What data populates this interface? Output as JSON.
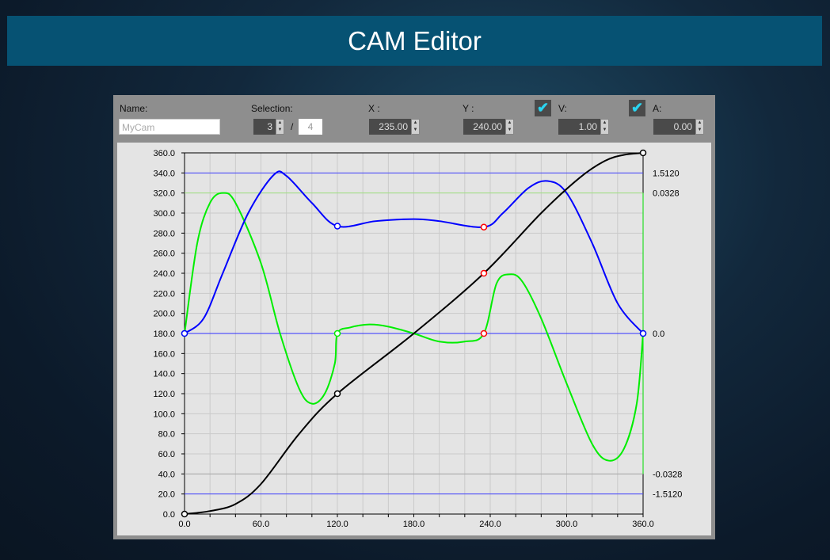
{
  "title": "CAM Editor",
  "toolbar": {
    "name_label": "Name:",
    "name_value": "MyCam",
    "selection_label": "Selection:",
    "selection_value": "3",
    "selection_sep": "/",
    "selection_total": "4",
    "x_label": "X :",
    "x_value": "235.00",
    "y_label": "Y :",
    "y_value": "240.00",
    "v_label": "V:",
    "v_value": "1.00",
    "v_checked": true,
    "a_label": "A:",
    "a_value": "0.00",
    "a_checked": true
  },
  "chart_data": {
    "type": "line",
    "xlim": [
      0,
      360
    ],
    "ylim": [
      0,
      360
    ],
    "x_ticks": [
      "0.0",
      "60.0",
      "120.0",
      "180.0",
      "240.0",
      "300.0",
      "360.0"
    ],
    "y_ticks": [
      "0.0",
      "20.0",
      "40.0",
      "60.0",
      "80.0",
      "100.0",
      "120.0",
      "140.0",
      "160.0",
      "180.0",
      "200.0",
      "220.0",
      "240.0",
      "260.0",
      "280.0",
      "300.0",
      "320.0",
      "340.0",
      "360.0"
    ],
    "right_ticks": [
      "1.5120",
      "0.0328",
      "0.0",
      "-0.0328",
      "-1.5120"
    ],
    "grid": true,
    "colors": {
      "position": "#000000",
      "velocity": "#0000ff",
      "acceleration": "#00ee00",
      "selected": "#ff0000"
    },
    "control_points": [
      [
        0,
        0
      ],
      [
        120,
        120
      ],
      [
        235,
        240
      ],
      [
        360,
        360
      ]
    ],
    "selected_index": 2,
    "position": [
      [
        0,
        0
      ],
      [
        20,
        3
      ],
      [
        40,
        10
      ],
      [
        60,
        30
      ],
      [
        90,
        80
      ],
      [
        120,
        120
      ],
      [
        180,
        180
      ],
      [
        235,
        240
      ],
      [
        280,
        300
      ],
      [
        310,
        335
      ],
      [
        330,
        352
      ],
      [
        345,
        358
      ],
      [
        360,
        360
      ]
    ],
    "velocity": {
      "max": 1.512,
      "points": [
        [
          0,
          0
        ],
        [
          15,
          0.142
        ],
        [
          30,
          0.567
        ],
        [
          50,
          1.134
        ],
        [
          70,
          1.493
        ],
        [
          80,
          1.484
        ],
        [
          100,
          1.229
        ],
        [
          120,
          1.011
        ],
        [
          150,
          1.058
        ],
        [
          180,
          1.077
        ],
        [
          200,
          1.058
        ],
        [
          235,
          1.002
        ],
        [
          250,
          1.134
        ],
        [
          270,
          1.37
        ],
        [
          285,
          1.436
        ],
        [
          300,
          1.323
        ],
        [
          320,
          0.851
        ],
        [
          340,
          0.284
        ],
        [
          360,
          0
        ]
      ]
    },
    "acceleration": {
      "max": 0.0328,
      "points": [
        [
          0,
          0
        ],
        [
          10,
          0.0211
        ],
        [
          20,
          0.0305
        ],
        [
          30,
          0.0328
        ],
        [
          40,
          0.0305
        ],
        [
          60,
          0.0164
        ],
        [
          75,
          0
        ],
        [
          90,
          -0.0129
        ],
        [
          100,
          -0.0164
        ],
        [
          110,
          -0.0141
        ],
        [
          118,
          -0.007
        ],
        [
          120,
          0
        ],
        [
          130,
          0.0014
        ],
        [
          145,
          0.0021
        ],
        [
          160,
          0.0016
        ],
        [
          180,
          0
        ],
        [
          200,
          -0.0019
        ],
        [
          220,
          -0.0019
        ],
        [
          235,
          0
        ],
        [
          245,
          0.0117
        ],
        [
          255,
          0.0138
        ],
        [
          265,
          0.0122
        ],
        [
          280,
          0.0035
        ],
        [
          300,
          -0.0117
        ],
        [
          320,
          -0.0258
        ],
        [
          333,
          -0.0297
        ],
        [
          345,
          -0.0269
        ],
        [
          355,
          -0.0164
        ],
        [
          360,
          0
        ]
      ]
    }
  }
}
